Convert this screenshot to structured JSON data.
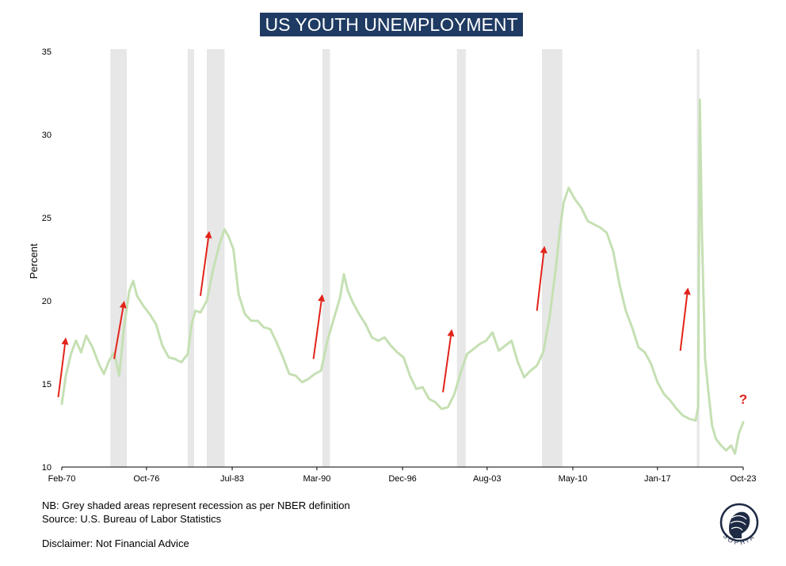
{
  "chart_data": {
    "type": "line",
    "title": "US YOUTH UNEMPLOYMENT",
    "ylabel": "Percent",
    "xlabel": "",
    "ylim": [
      10,
      35
    ],
    "yticks": [
      10,
      15,
      20,
      25,
      30,
      35
    ],
    "xticks": [
      {
        "label": "Feb-70",
        "x": 1970.08
      },
      {
        "label": "Oct-76",
        "x": 1976.75
      },
      {
        "label": "Jul-83",
        "x": 1983.5
      },
      {
        "label": "Mar-90",
        "x": 1990.17
      },
      {
        "label": "Dec-96",
        "x": 1996.92
      },
      {
        "label": "Aug-03",
        "x": 2003.58
      },
      {
        "label": "May-10",
        "x": 2010.33
      },
      {
        "label": "Jan-17",
        "x": 2017.0
      },
      {
        "label": "Oct-23",
        "x": 2023.75
      }
    ],
    "xlim": [
      2023.75,
      1970.08
    ],
    "line_color": "#c5e0b3",
    "series": [
      {
        "points": [
          [
            1970.08,
            13.8
          ],
          [
            1970.4,
            15.5
          ],
          [
            1970.8,
            16.8
          ],
          [
            1971.2,
            17.6
          ],
          [
            1971.6,
            16.9
          ],
          [
            1972.0,
            17.9
          ],
          [
            1972.5,
            17.2
          ],
          [
            1973.0,
            16.2
          ],
          [
            1973.4,
            15.6
          ],
          [
            1973.8,
            16.4
          ],
          [
            1974.2,
            16.9
          ],
          [
            1974.6,
            15.5
          ],
          [
            1975.0,
            18.5
          ],
          [
            1975.4,
            20.6
          ],
          [
            1975.7,
            21.2
          ],
          [
            1976.0,
            20.3
          ],
          [
            1976.5,
            19.7
          ],
          [
            1977.0,
            19.2
          ],
          [
            1977.5,
            18.6
          ],
          [
            1978.0,
            17.3
          ],
          [
            1978.5,
            16.6
          ],
          [
            1979.0,
            16.5
          ],
          [
            1979.5,
            16.3
          ],
          [
            1980.0,
            16.8
          ],
          [
            1980.3,
            18.6
          ],
          [
            1980.6,
            19.4
          ],
          [
            1981.0,
            19.3
          ],
          [
            1981.5,
            20.0
          ],
          [
            1982.0,
            21.9
          ],
          [
            1982.5,
            23.4
          ],
          [
            1982.9,
            24.3
          ],
          [
            1983.2,
            23.9
          ],
          [
            1983.6,
            23.1
          ],
          [
            1984.0,
            20.4
          ],
          [
            1984.5,
            19.2
          ],
          [
            1985.0,
            18.8
          ],
          [
            1985.5,
            18.8
          ],
          [
            1986.0,
            18.4
          ],
          [
            1986.5,
            18.3
          ],
          [
            1987.0,
            17.5
          ],
          [
            1987.5,
            16.6
          ],
          [
            1988.0,
            15.6
          ],
          [
            1988.5,
            15.5
          ],
          [
            1989.0,
            15.1
          ],
          [
            1989.5,
            15.3
          ],
          [
            1990.0,
            15.6
          ],
          [
            1990.5,
            15.8
          ],
          [
            1991.0,
            17.6
          ],
          [
            1991.5,
            18.9
          ],
          [
            1992.0,
            20.2
          ],
          [
            1992.3,
            21.6
          ],
          [
            1992.6,
            20.6
          ],
          [
            1993.0,
            19.9
          ],
          [
            1993.5,
            19.2
          ],
          [
            1994.0,
            18.6
          ],
          [
            1994.5,
            17.8
          ],
          [
            1995.0,
            17.6
          ],
          [
            1995.5,
            17.8
          ],
          [
            1996.0,
            17.3
          ],
          [
            1996.5,
            16.9
          ],
          [
            1997.0,
            16.6
          ],
          [
            1997.5,
            15.5
          ],
          [
            1998.0,
            14.7
          ],
          [
            1998.5,
            14.8
          ],
          [
            1999.0,
            14.1
          ],
          [
            1999.5,
            13.9
          ],
          [
            2000.0,
            13.5
          ],
          [
            2000.5,
            13.6
          ],
          [
            2001.0,
            14.4
          ],
          [
            2001.5,
            15.7
          ],
          [
            2002.0,
            16.8
          ],
          [
            2002.5,
            17.1
          ],
          [
            2003.0,
            17.4
          ],
          [
            2003.5,
            17.6
          ],
          [
            2004.0,
            18.1
          ],
          [
            2004.5,
            17.0
          ],
          [
            2005.0,
            17.3
          ],
          [
            2005.5,
            17.6
          ],
          [
            2006.0,
            16.3
          ],
          [
            2006.5,
            15.4
          ],
          [
            2007.0,
            15.8
          ],
          [
            2007.5,
            16.1
          ],
          [
            2008.0,
            16.9
          ],
          [
            2008.5,
            19.0
          ],
          [
            2009.0,
            22.0
          ],
          [
            2009.3,
            24.2
          ],
          [
            2009.6,
            25.9
          ],
          [
            2010.0,
            26.8
          ],
          [
            2010.5,
            26.1
          ],
          [
            2011.0,
            25.6
          ],
          [
            2011.5,
            24.8
          ],
          [
            2012.0,
            24.6
          ],
          [
            2012.5,
            24.4
          ],
          [
            2013.0,
            24.1
          ],
          [
            2013.5,
            23.0
          ],
          [
            2014.0,
            21.0
          ],
          [
            2014.5,
            19.4
          ],
          [
            2015.0,
            18.4
          ],
          [
            2015.5,
            17.2
          ],
          [
            2016.0,
            16.9
          ],
          [
            2016.5,
            16.2
          ],
          [
            2017.0,
            15.1
          ],
          [
            2017.5,
            14.4
          ],
          [
            2018.0,
            14.0
          ],
          [
            2018.5,
            13.5
          ],
          [
            2019.0,
            13.1
          ],
          [
            2019.5,
            12.9
          ],
          [
            2020.0,
            12.8
          ],
          [
            2020.2,
            13.6
          ],
          [
            2020.33,
            32.1
          ],
          [
            2020.5,
            24.0
          ],
          [
            2020.75,
            16.5
          ],
          [
            2021.0,
            14.6
          ],
          [
            2021.3,
            12.5
          ],
          [
            2021.6,
            11.7
          ],
          [
            2022.0,
            11.3
          ],
          [
            2022.4,
            11.0
          ],
          [
            2022.8,
            11.3
          ],
          [
            2023.1,
            10.8
          ],
          [
            2023.4,
            12.0
          ],
          [
            2023.75,
            12.7
          ]
        ]
      }
    ],
    "recessions": [
      [
        1973.9,
        1975.2
      ],
      [
        1980.0,
        1980.5
      ],
      [
        1981.5,
        1982.9
      ],
      [
        1990.6,
        1991.2
      ],
      [
        2001.2,
        2001.9
      ],
      [
        2007.9,
        2009.5
      ],
      [
        2020.1,
        2020.3
      ]
    ],
    "arrows": [
      [
        [
          1969.8,
          14.2
        ],
        [
          1970.4,
          17.8
        ]
      ],
      [
        [
          1974.2,
          16.5
        ],
        [
          1975.0,
          20.0
        ]
      ],
      [
        [
          1981.0,
          20.3
        ],
        [
          1981.7,
          24.2
        ]
      ],
      [
        [
          1989.9,
          16.5
        ],
        [
          1990.6,
          20.4
        ]
      ],
      [
        [
          2000.1,
          14.5
        ],
        [
          2000.8,
          18.3
        ]
      ],
      [
        [
          2007.5,
          19.4
        ],
        [
          2008.1,
          23.3
        ]
      ],
      [
        [
          2018.8,
          17.0
        ],
        [
          2019.4,
          20.8
        ]
      ]
    ],
    "annotation": "?",
    "annotation_at": [
      2023.75,
      13.8
    ],
    "annotation_color": "#e2231a",
    "arrow_color": "#e2231a",
    "shade_color": "#e7e7e7"
  },
  "notes": {
    "line1": "NB: Grey shaded areas represent recession as per NBER definition",
    "line2": "Source: U.S. Bureau of Labor Statistics",
    "line3": "Disclaimer: Not Financial Advice"
  },
  "logo": {
    "text": "SOPHIA",
    "icon": "sophia-head-icon",
    "color": "#1f2a44"
  }
}
